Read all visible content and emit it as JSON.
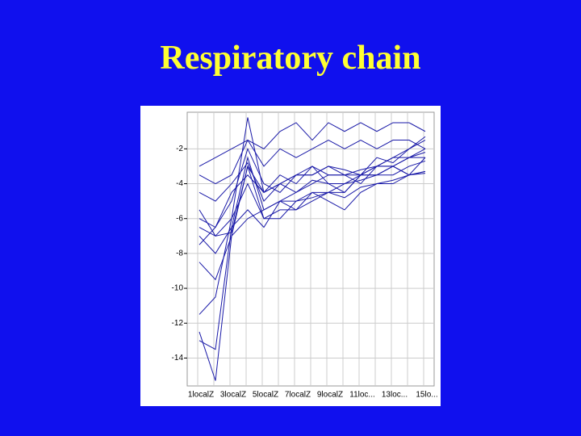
{
  "title": "Respiratory chain",
  "chart_data": {
    "type": "line",
    "categories": [
      "1localZ",
      null,
      "3localZ",
      null,
      "5localZ",
      null,
      "7localZ",
      null,
      "9localZ",
      null,
      "11loc...",
      null,
      "13loc...",
      null,
      "15lo..."
    ],
    "ylim": [
      -15.6,
      0.1
    ],
    "yticks": [
      -2,
      -4,
      -6,
      -8,
      -10,
      -12,
      -14
    ],
    "grid": true,
    "series": [
      {
        "color": "#1a1aa8",
        "values": [
          -3,
          -2.5,
          -2,
          -1.5,
          -2,
          -1,
          -0.5,
          -1.5,
          -0.5,
          -1,
          -0.5,
          -1,
          -0.5,
          -0.5,
          -1
        ]
      },
      {
        "color": "#1a1aa8",
        "values": [
          -3.5,
          -4,
          -3.5,
          -1.5,
          -3,
          -2,
          -2.5,
          -2,
          -1.5,
          -2,
          -1.5,
          -2,
          -1.5,
          -1.5,
          -2
        ]
      },
      {
        "color": "#1a1aa8",
        "values": [
          -6.5,
          -7,
          -6,
          -0.2,
          -4.5,
          -4,
          -3.5,
          -3.5,
          -3,
          -3.2,
          -3.5,
          -3,
          -2.5,
          -2,
          -1.5
        ]
      },
      {
        "color": "#1a1aa8",
        "values": [
          -7,
          -8,
          -6.5,
          -2.5,
          -5.5,
          -5,
          -4.5,
          -4,
          -3.5,
          -3.5,
          -4,
          -3,
          -3,
          -2.5,
          -2
        ]
      },
      {
        "color": "#1a1aa8",
        "values": [
          -12.5,
          -15.3,
          -7,
          -3,
          -6,
          -5.5,
          -5.5,
          -5,
          -4.5,
          -4.5,
          -3.5,
          -3.5,
          -3,
          -2.5,
          -2.2
        ]
      },
      {
        "color": "#1a1aa8",
        "values": [
          -11.5,
          -10.5,
          -6,
          -4,
          -6,
          -6,
          -5,
          -4.5,
          -4.5,
          -4,
          -3.5,
          -3.5,
          -3,
          -3.5,
          -3.3
        ]
      },
      {
        "color": "#1a1aa8",
        "values": [
          -13,
          -13.5,
          -6.5,
          -5.5,
          -6.5,
          -5,
          -5.5,
          -4.5,
          -5,
          -5.5,
          -4.5,
          -4,
          -4,
          -3.5,
          -3.4
        ]
      },
      {
        "color": "#1a1aa8",
        "values": [
          -6,
          -6.5,
          -5,
          -2,
          -4,
          -4.5,
          -3.5,
          -3,
          -3.5,
          -3.5,
          -3.2,
          -3,
          -3,
          -3.5,
          -2.5
        ]
      },
      {
        "color": "#1a1aa8",
        "values": [
          -4.5,
          -5,
          -4,
          -2.8,
          -5,
          -4,
          -4.5,
          -3.8,
          -4,
          -4,
          -3.8,
          -3.5,
          -3.5,
          -3,
          -2.7
        ]
      },
      {
        "color": "#1a1aa8",
        "values": [
          -8.5,
          -9.5,
          -7,
          -6,
          -5.5,
          -5,
          -5,
          -4.8,
          -4.5,
          -4.8,
          -4.2,
          -4,
          -3.8,
          -3.5,
          -3.3
        ]
      },
      {
        "color": "#1a1aa8",
        "values": [
          -7.5,
          -6.5,
          -4.5,
          -3.5,
          -4.5,
          -4,
          -3.5,
          -3.5,
          -3,
          -3.5,
          -3.5,
          -3,
          -2.5,
          -2.5,
          -2.5
        ]
      },
      {
        "color": "#1a1aa8",
        "values": [
          -5.5,
          -7,
          -6.8,
          -3,
          -4.5,
          -3.5,
          -4,
          -3,
          -4,
          -4.5,
          -3.5,
          -2.5,
          -2.8,
          -2,
          -1.3
        ]
      }
    ]
  }
}
